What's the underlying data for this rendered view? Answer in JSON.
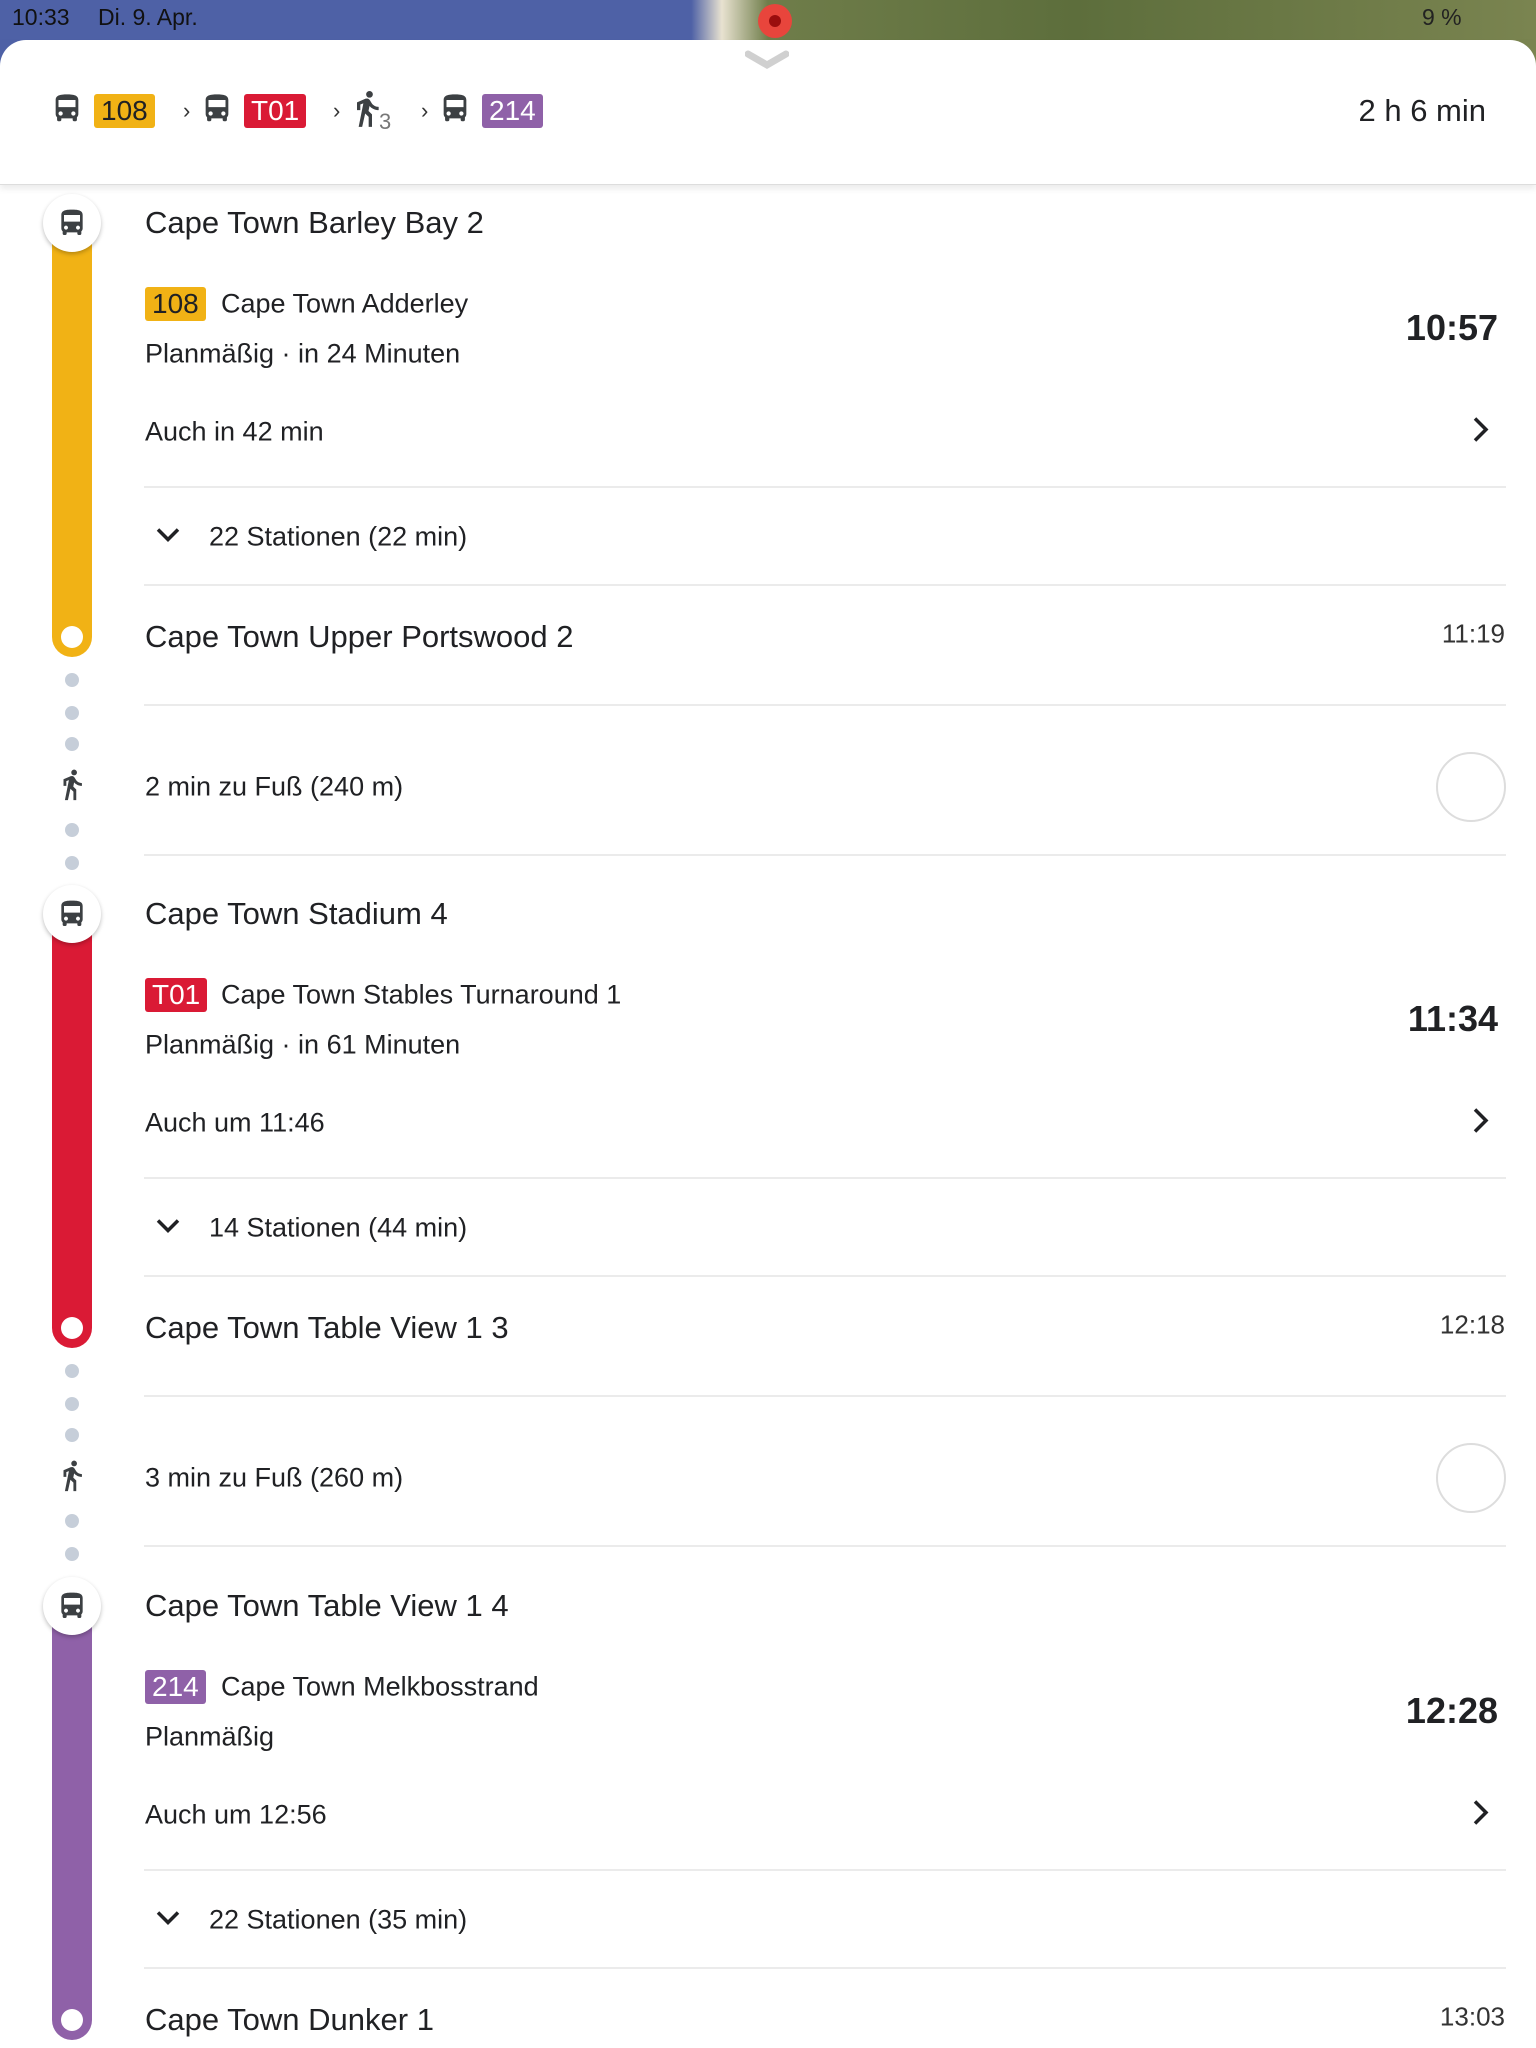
{
  "status_bar": {
    "time": "10:33",
    "date": "Di. 9. Apr.",
    "battery": "9 %"
  },
  "summary": {
    "steps": [
      {
        "type": "bus",
        "label": "108",
        "color": "#F1B215",
        "text_color": "#202124"
      },
      {
        "type": "bus",
        "label": "T01",
        "color": "#DA1A35",
        "text_color": "#ffffff"
      },
      {
        "type": "walk",
        "label": "3"
      },
      {
        "type": "bus",
        "label": "214",
        "color": "#8F61A8",
        "text_color": "#ffffff"
      }
    ],
    "duration": "2 h 6 min"
  },
  "colors": {
    "walk_dots": "#c6ced9",
    "map_icon": "#1a73e8"
  },
  "segments": [
    {
      "start": "Cape Town Barley Bay 2",
      "line": "108",
      "color": "#F1B215",
      "badge_text_color": "#202124",
      "headsign": "Cape Town Adderley",
      "status": "Planmäßig · in 24 Minuten",
      "departure": "10:57",
      "also": "Auch in 42 min",
      "stops": "22 Stationen (22 min)",
      "end": "Cape Town Upper Portswood 2",
      "arrival": "11:19"
    },
    {
      "start": "Cape Town Stadium 4",
      "line": "T01",
      "color": "#DA1A35",
      "badge_text_color": "#ffffff",
      "headsign": "Cape Town Stables Turnaround 1",
      "status": "Planmäßig · in 61 Minuten",
      "departure": "11:34",
      "also": "Auch um 11:46",
      "stops": "14 Stationen (44 min)",
      "end": "Cape Town Table View 1 3",
      "arrival": "12:18"
    },
    {
      "start": "Cape Town Table View 1 4",
      "line": "214",
      "color": "#8F61A8",
      "badge_text_color": "#ffffff",
      "headsign": "Cape Town Melkbosstrand",
      "status": "Planmäßig",
      "departure": "12:28",
      "also": "Auch um 12:56",
      "stops": "22 Stationen (35 min)",
      "end": "Cape Town Dunker 1",
      "arrival": "13:03"
    }
  ],
  "walks": [
    {
      "text": "2 min zu Fuß (240 m)"
    },
    {
      "text": "3 min zu Fuß (260 m)"
    }
  ]
}
